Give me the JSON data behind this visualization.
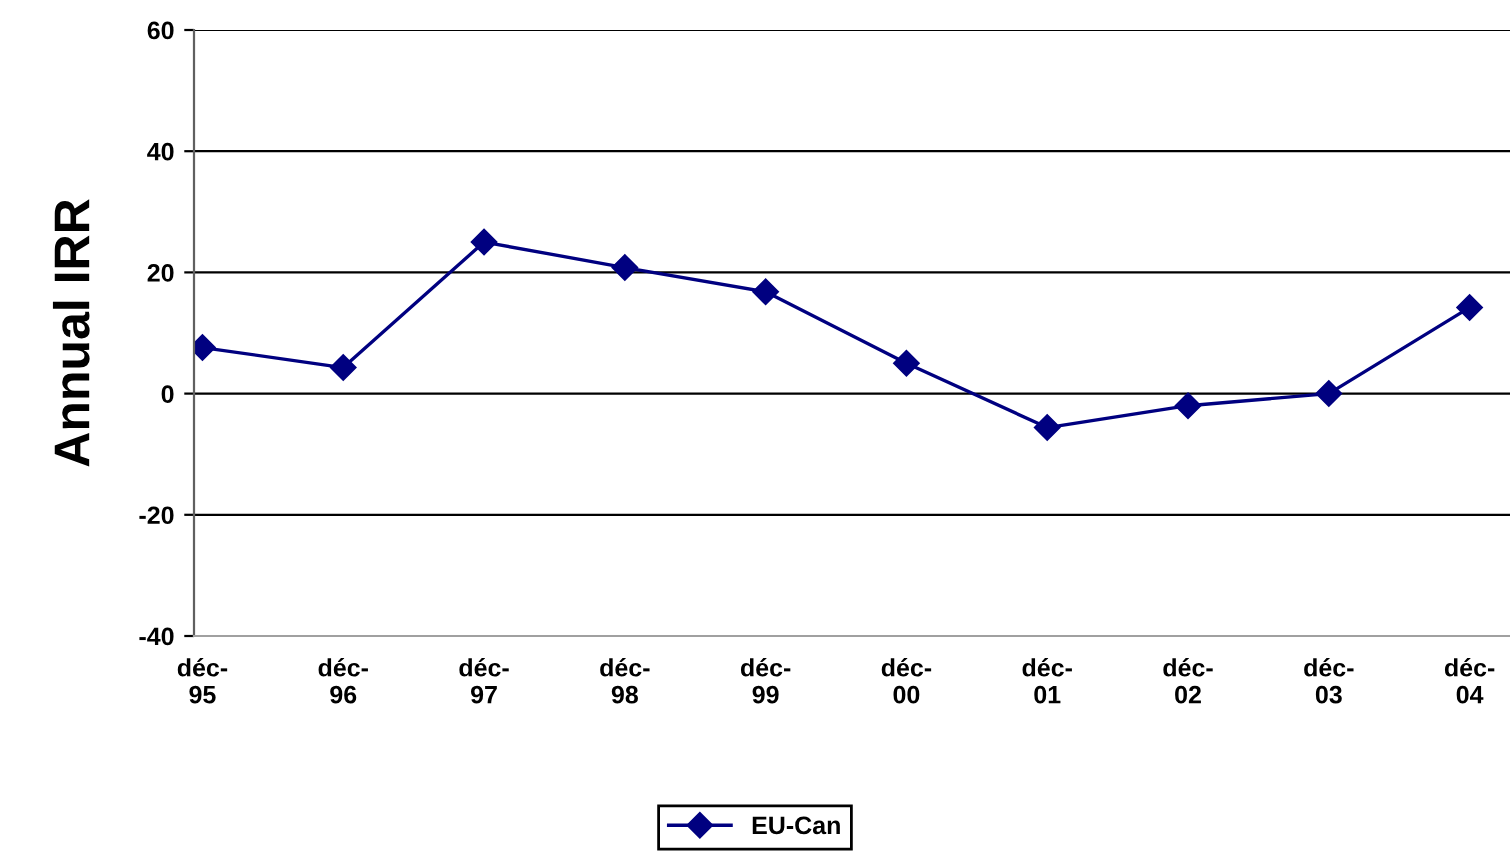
{
  "chart_data": {
    "type": "line",
    "ylabel": "Annual IRR",
    "categories": [
      "déc-\n95",
      "déc-\n96",
      "déc-\n97",
      "déc-\n98",
      "déc-\n99",
      "déc-\n00",
      "déc-\n01",
      "déc-\n02",
      "déc-\n03",
      "déc-\n04"
    ],
    "series": [
      {
        "name": "EU-Can",
        "color": "#000080",
        "values": [
          7.6,
          4.3,
          25,
          20.8,
          16.8,
          5,
          -5.6,
          -2,
          0,
          14.2
        ]
      }
    ],
    "ylim": [
      -40,
      60
    ],
    "yticks": [
      -40,
      -20,
      0,
      20,
      40,
      60
    ],
    "grid": "y",
    "legend": "bottom",
    "marker": "diamond",
    "line_style": "solid"
  }
}
